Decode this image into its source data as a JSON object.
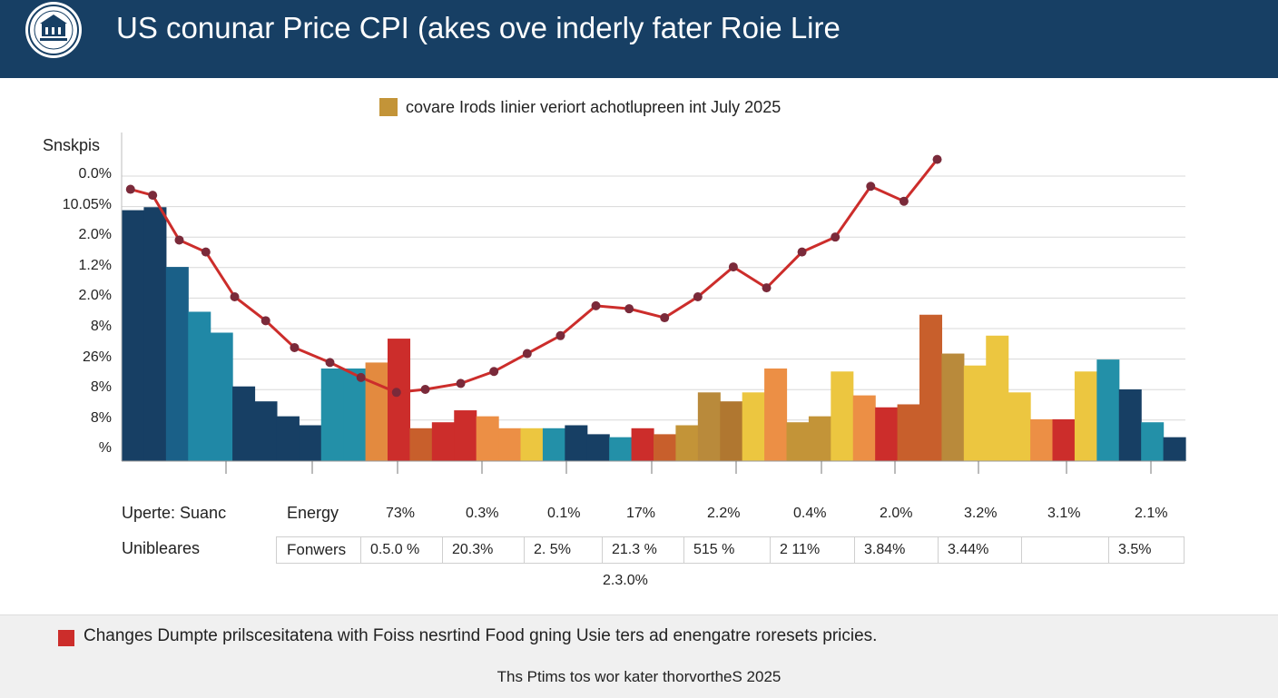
{
  "header": {
    "title": "US conunar Price CPI (akes ove inderly fater Roie Lire",
    "logo_icon": "seal-icon"
  },
  "chart_data": {
    "type": "bar",
    "legend": {
      "label": "covare Irods Iinier veriort achotlupreen int July 2025",
      "color": "#c39438",
      "placement": "top-center"
    },
    "ylabel": "Snskpis",
    "y_tick_labels": [
      "0.0%",
      "10.05%",
      "2.0%",
      "1.2%",
      "2.0%",
      "8%",
      "26%",
      "8%",
      "8%",
      "%"
    ],
    "ylim": [
      0,
      11
    ],
    "grid": true,
    "bars": [
      {
        "v": 8.4,
        "c": "#173f64"
      },
      {
        "v": 8.5,
        "c": "#173f64"
      },
      {
        "v": 6.5,
        "c": "#1a6088"
      },
      {
        "v": 5.0,
        "c": "#2088a6"
      },
      {
        "v": 4.3,
        "c": "#2088a6"
      },
      {
        "v": 2.5,
        "c": "#173f64"
      },
      {
        "v": 2.0,
        "c": "#173f64"
      },
      {
        "v": 1.5,
        "c": "#173f64"
      },
      {
        "v": 1.2,
        "c": "#173f64"
      },
      {
        "v": 3.1,
        "c": "#2390a8"
      },
      {
        "v": 3.1,
        "c": "#2390a8"
      },
      {
        "v": 3.3,
        "c": "#e38a3f"
      },
      {
        "v": 4.1,
        "c": "#cc2d2b"
      },
      {
        "v": 1.1,
        "c": "#c85f2c"
      },
      {
        "v": 1.3,
        "c": "#cc2d2b"
      },
      {
        "v": 1.7,
        "c": "#cc2d2b"
      },
      {
        "v": 1.5,
        "c": "#ec8f45"
      },
      {
        "v": 1.1,
        "c": "#ec8f45"
      },
      {
        "v": 1.1,
        "c": "#ecc640"
      },
      {
        "v": 1.1,
        "c": "#2390a8"
      },
      {
        "v": 1.2,
        "c": "#173f64"
      },
      {
        "v": 0.9,
        "c": "#173f64"
      },
      {
        "v": 0.8,
        "c": "#2390a8"
      },
      {
        "v": 1.1,
        "c": "#cc2d2b"
      },
      {
        "v": 0.9,
        "c": "#c85f2c"
      },
      {
        "v": 1.2,
        "c": "#c39438"
      },
      {
        "v": 2.3,
        "c": "#b98a3b"
      },
      {
        "v": 2.0,
        "c": "#b07730"
      },
      {
        "v": 2.3,
        "c": "#ecc640"
      },
      {
        "v": 3.1,
        "c": "#ec8f45"
      },
      {
        "v": 1.3,
        "c": "#c39438"
      },
      {
        "v": 1.5,
        "c": "#c39438"
      },
      {
        "v": 3.0,
        "c": "#ecc640"
      },
      {
        "v": 2.2,
        "c": "#ec8f45"
      },
      {
        "v": 1.8,
        "c": "#cc2d2b"
      },
      {
        "v": 1.9,
        "c": "#c85f2c"
      },
      {
        "v": 4.9,
        "c": "#c85f2c"
      },
      {
        "v": 3.6,
        "c": "#b98a3b"
      },
      {
        "v": 3.2,
        "c": "#ecc640"
      },
      {
        "v": 4.2,
        "c": "#ecc640"
      },
      {
        "v": 2.3,
        "c": "#ecc640"
      },
      {
        "v": 1.4,
        "c": "#ec8f45"
      },
      {
        "v": 1.4,
        "c": "#cc2d2b"
      },
      {
        "v": 3.0,
        "c": "#ecc640"
      },
      {
        "v": 3.4,
        "c": "#2390a8"
      },
      {
        "v": 2.4,
        "c": "#173f64"
      },
      {
        "v": 1.3,
        "c": "#2390a8"
      },
      {
        "v": 0.8,
        "c": "#173f64"
      }
    ],
    "line_series": {
      "color": "#cc2d2b",
      "points": [
        [
          0.4,
          9.1
        ],
        [
          1.4,
          8.9
        ],
        [
          2.6,
          7.4
        ],
        [
          3.8,
          7.0
        ],
        [
          5.1,
          5.5
        ],
        [
          6.5,
          4.7
        ],
        [
          7.8,
          3.8
        ],
        [
          9.4,
          3.3
        ],
        [
          10.8,
          2.8
        ],
        [
          12.4,
          2.3
        ],
        [
          13.7,
          2.4
        ],
        [
          15.3,
          2.6
        ],
        [
          16.8,
          3.0
        ],
        [
          18.3,
          3.6
        ],
        [
          19.8,
          4.2
        ],
        [
          21.4,
          5.2
        ],
        [
          22.9,
          5.1
        ],
        [
          24.5,
          4.8
        ],
        [
          26.0,
          5.5
        ],
        [
          27.6,
          6.5
        ],
        [
          29.1,
          5.8
        ],
        [
          30.7,
          7.0
        ],
        [
          32.2,
          7.5
        ],
        [
          33.8,
          9.2
        ],
        [
          35.3,
          8.7
        ],
        [
          36.8,
          10.1
        ]
      ]
    }
  },
  "table": {
    "row1_label": "Uperte: Suanc",
    "row1_name": "Energy",
    "row1_values": [
      "73%",
      "0.3%",
      "0.1%",
      "17%",
      "2.2%",
      "0.4%",
      "2.0%",
      "3.2%",
      "3.1%",
      "2.1%"
    ],
    "row2_label": "Unibleares",
    "row2_name": "Fonwers",
    "row2_values": [
      "0.5.0 %",
      "20.3%",
      "2. 5%",
      "21.3 %",
      "515 %",
      "2 11%",
      "3.84%",
      "3.44%",
      "",
      "3.5%"
    ],
    "below_value": "2.3.0%"
  },
  "footer": {
    "note": "Changes Dumpte prilscesitatena with Foiss nesrtind Food gning Usie ters ad enengatre roresets pricies.",
    "note_color": "#cc2d2b",
    "source": "Ths Ptims tos wor kater thorvortheS 2025"
  }
}
